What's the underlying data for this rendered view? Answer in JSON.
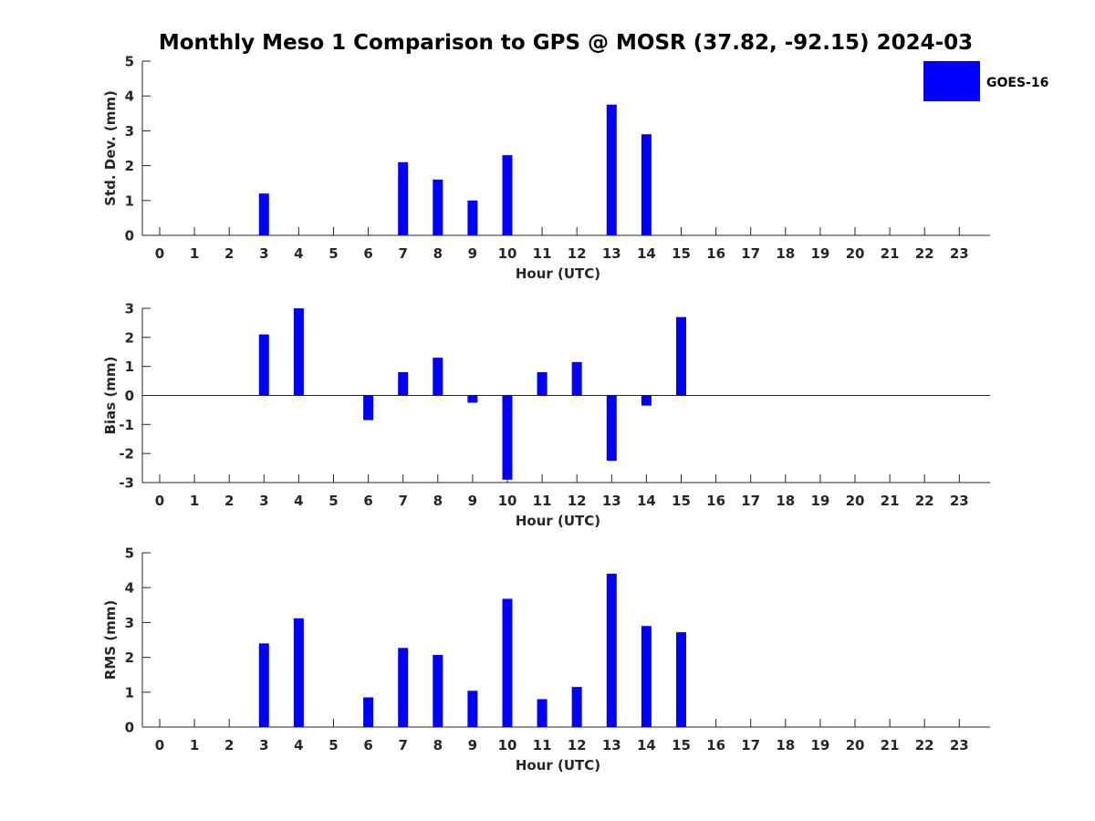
{
  "figure": {
    "title": "Monthly Meso 1 Comparison to GPS @ MOSR (37.82, -92.15) 2024-03"
  },
  "legend": {
    "label": "GOES-16",
    "color": "#0000ff",
    "placement": "top-right"
  },
  "chart_data": [
    {
      "type": "bar",
      "ylabel": "Std. Dev. (mm)",
      "xlabel": "Hour (UTC)",
      "ylim": [
        0,
        5
      ],
      "yticks": [
        0,
        1,
        2,
        3,
        4,
        5
      ],
      "categories": [
        "0",
        "1",
        "2",
        "3",
        "4",
        "5",
        "6",
        "7",
        "8",
        "9",
        "10",
        "11",
        "12",
        "13",
        "14",
        "15",
        "16",
        "17",
        "18",
        "19",
        "20",
        "21",
        "22",
        "23"
      ],
      "series": [
        {
          "name": "GOES-16",
          "color": "#0000ff",
          "values": [
            null,
            null,
            null,
            1.2,
            null,
            null,
            null,
            2.1,
            1.6,
            1.0,
            2.3,
            null,
            null,
            3.75,
            2.9,
            null,
            null,
            null,
            null,
            null,
            null,
            null,
            null,
            null
          ]
        }
      ],
      "zero_line": false,
      "grid": false
    },
    {
      "type": "bar",
      "ylabel": "Bias (mm)",
      "xlabel": "Hour (UTC)",
      "ylim": [
        -3,
        3
      ],
      "yticks": [
        -3,
        -2,
        -1,
        0,
        1,
        2,
        3
      ],
      "categories": [
        "0",
        "1",
        "2",
        "3",
        "4",
        "5",
        "6",
        "7",
        "8",
        "9",
        "10",
        "11",
        "12",
        "13",
        "14",
        "15",
        "16",
        "17",
        "18",
        "19",
        "20",
        "21",
        "22",
        "23"
      ],
      "series": [
        {
          "name": "GOES-16",
          "color": "#0000ff",
          "values": [
            null,
            null,
            null,
            2.1,
            3.0,
            null,
            -0.85,
            0.8,
            1.3,
            -0.25,
            -2.9,
            0.8,
            1.15,
            -2.25,
            -0.35,
            2.7,
            null,
            null,
            null,
            null,
            null,
            null,
            null,
            null
          ]
        }
      ],
      "zero_line": true,
      "grid": false
    },
    {
      "type": "bar",
      "ylabel": "RMS (mm)",
      "xlabel": "Hour (UTC)",
      "ylim": [
        0,
        5
      ],
      "yticks": [
        0,
        1,
        2,
        3,
        4,
        5
      ],
      "categories": [
        "0",
        "1",
        "2",
        "3",
        "4",
        "5",
        "6",
        "7",
        "8",
        "9",
        "10",
        "11",
        "12",
        "13",
        "14",
        "15",
        "16",
        "17",
        "18",
        "19",
        "20",
        "21",
        "22",
        "23"
      ],
      "series": [
        {
          "name": "GOES-16",
          "color": "#0000ff",
          "values": [
            null,
            null,
            null,
            2.4,
            3.12,
            null,
            0.85,
            2.27,
            2.07,
            1.04,
            3.68,
            0.8,
            1.15,
            4.4,
            2.9,
            2.72,
            null,
            null,
            null,
            null,
            null,
            null,
            null,
            null
          ]
        }
      ],
      "zero_line": false,
      "grid": false
    }
  ]
}
